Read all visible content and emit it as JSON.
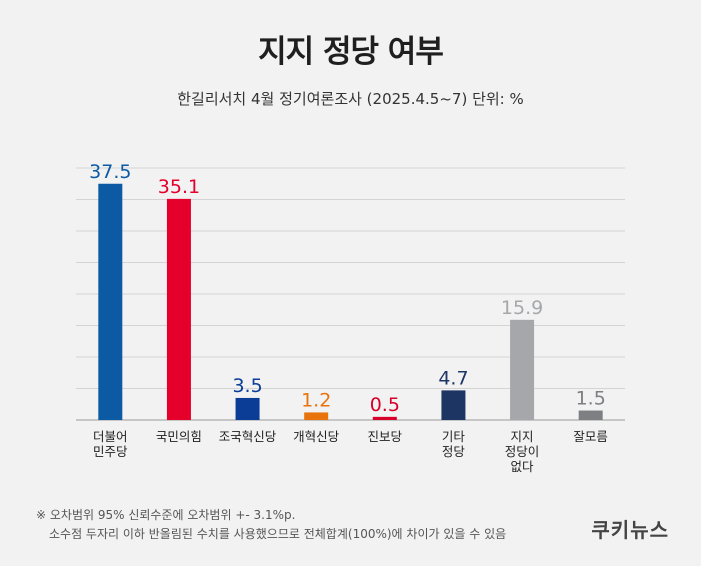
{
  "header": {
    "title": "지지 정당 여부",
    "subtitle": "한길리서치 4월 정기여론조사 (2025.4.5~7) 단위: %"
  },
  "notes": {
    "line1": "※ 오차범위 95% 신뢰수준에 오차범위 +- 3.1%p.",
    "line2": "소수점 두자리 이하 반올림된 수치를 사용했으므로 전체합계(100%)에 차이가 있을 수 있음"
  },
  "brand": {
    "logo_text": "쿠키뉴스"
  },
  "chart_data": {
    "type": "bar",
    "categories": [
      [
        "더불어",
        "민주당"
      ],
      [
        "국민의힘"
      ],
      [
        "조국혁신당"
      ],
      [
        "개혁신당"
      ],
      [
        "진보당"
      ],
      [
        "기타",
        "정당"
      ],
      [
        "지지",
        "정당이",
        "없다"
      ],
      [
        "잘모름"
      ]
    ],
    "values": [
      37.5,
      35.1,
      3.5,
      1.2,
      0.5,
      4.7,
      15.9,
      1.5
    ],
    "value_labels": [
      "37.5",
      "35.1",
      "3.5",
      "1.2",
      "0.5",
      "4.7",
      "15.9",
      "1.5"
    ],
    "colors": [
      "#0b5aa3",
      "#e5002b",
      "#0b3c96",
      "#e8730c",
      "#d6002a",
      "#1c3563",
      "#a5a7ab",
      "#7d7f83"
    ],
    "grid": true
  }
}
